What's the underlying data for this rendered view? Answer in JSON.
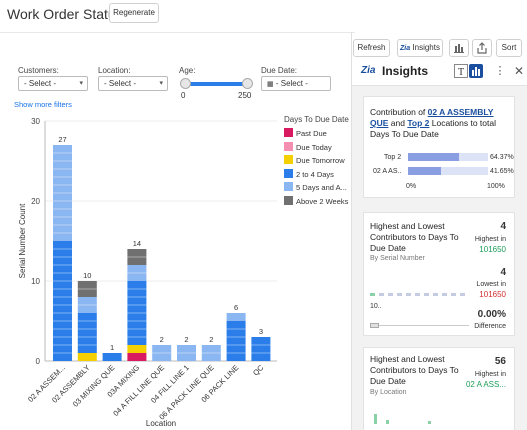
{
  "header": {
    "title": "Work Order Status",
    "regenerate_label": "Regenerate"
  },
  "toolbar": {
    "refresh_label": "Refresh",
    "insights_label": "Insights",
    "sort_label": "Sort",
    "insights_logo": "Zia"
  },
  "filters": {
    "customers": {
      "label": "Customers:",
      "value": "- Select -"
    },
    "location": {
      "label": "Location:",
      "value": "- Select -"
    },
    "age": {
      "label": "Age:",
      "min": "0",
      "max": "250"
    },
    "due_date": {
      "label": "Due Date:",
      "value": "- Select -"
    },
    "show_more": "Show more filters"
  },
  "chart_data": {
    "type": "bar",
    "stacked": true,
    "xlabel": "Location",
    "ylabel": "Serial Number Count",
    "ylim": [
      0,
      30
    ],
    "yticks": [
      "0",
      "10",
      "20",
      "30"
    ],
    "categories": [
      "02 A ASSEM...",
      "02 ASSEMBLY",
      "03 MIXING QUE",
      "03A MIXING",
      "04 A FILL LINE QUE",
      "04 FILL LINE 1",
      "06 A PACK LINE QUE",
      "06 PACK LINE",
      "QC"
    ],
    "totals": [
      "27",
      "10",
      "1",
      "14",
      "2",
      "2",
      "2",
      "6",
      "3"
    ],
    "legend_title": "Days To Due Date",
    "series": [
      {
        "name": "Past Due",
        "color": "#d81b60",
        "values": [
          0,
          0,
          0,
          1,
          0,
          0,
          0,
          0,
          0
        ]
      },
      {
        "name": "Due Today",
        "color": "#f48fb1",
        "values": [
          0,
          0,
          0,
          0,
          0,
          0,
          0,
          0,
          0
        ]
      },
      {
        "name": "Due Tomorrow",
        "color": "#f5d000",
        "values": [
          0,
          1,
          0,
          1,
          0,
          0,
          0,
          0,
          0
        ]
      },
      {
        "name": "2 to 4 Days",
        "color": "#2b7de9",
        "values": [
          15,
          5,
          1,
          8,
          0,
          0,
          0,
          5,
          3
        ]
      },
      {
        "name": "5 Days and A...",
        "color": "#8ab6f2",
        "values": [
          12,
          2,
          0,
          2,
          2,
          2,
          2,
          1,
          0
        ]
      },
      {
        "name": "Above 2 Weeks",
        "color": "#707070",
        "values": [
          0,
          2,
          0,
          2,
          0,
          0,
          0,
          0,
          0
        ]
      }
    ]
  },
  "insights": {
    "title": "Insights",
    "card1": {
      "title_pre": "Contribution of ",
      "title_hl1": "02 A ASSEMBLY QUE",
      "title_mid": " and ",
      "title_hl2": "Top 2",
      "title_post": " Locations to total Days To Due Date",
      "row1_label": "Top 2",
      "row1_value": "64.37%",
      "row1_pct": 0.6437,
      "row2_label": "02 A AS..",
      "row2_value": "41.65%",
      "row2_pct": 0.4165,
      "axis_min": "0%",
      "axis_max": "100%"
    },
    "card2": {
      "title": "Highest and Lowest Contributors to Days To Due Date",
      "subtitle": "By Serial Number",
      "highest_val": "4",
      "highest_label": "Highest in",
      "highest_id": "101650",
      "lowest_val": "4",
      "lowest_label": "Lowest in",
      "lowest_id": "101650",
      "diff_val": "0.00%",
      "diff_label": "Difference",
      "mini_label": "10.."
    },
    "card3": {
      "title": "Highest and Lowest Contributors to Days To Due Date",
      "subtitle": "By Location",
      "highest_val": "56",
      "highest_label": "Highest in",
      "highest_id": "02 A ASS..."
    }
  },
  "colors": {
    "accent": "#1a4fa0",
    "green": "#1e9e5a",
    "red": "#d32f2f"
  }
}
